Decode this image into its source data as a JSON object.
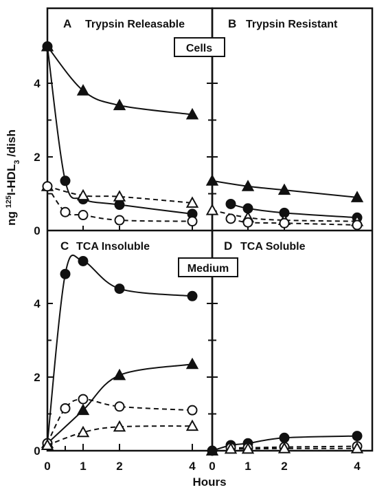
{
  "figure": {
    "ylabel": "ng 125I-HDL3 /dish",
    "xlabel": "Hours",
    "top_box_label": "Cells",
    "bottom_box_label": "Medium"
  },
  "chart_data": {
    "type": "line",
    "xlabel": "Hours",
    "ylabel": "ng 125I-HDL3 /dish",
    "ylim": [
      0,
      5.2
    ],
    "grid": false,
    "panels": [
      {
        "id": "A",
        "letter": "A",
        "title": "Trypsin Releasable",
        "series": [
          {
            "marker": "filled-triangle",
            "line": "solid",
            "x": [
              0,
              1,
              2,
              4
            ],
            "y": [
              5.0,
              3.8,
              3.4,
              3.15
            ]
          },
          {
            "marker": "filled-circle",
            "line": "solid",
            "x": [
              0,
              0.5,
              1,
              2,
              4
            ],
            "y": [
              5.0,
              1.35,
              0.85,
              0.7,
              0.45
            ]
          },
          {
            "marker": "open-triangle",
            "line": "dashed",
            "x": [
              0,
              1,
              2,
              4
            ],
            "y": [
              1.2,
              0.95,
              0.92,
              0.75
            ]
          },
          {
            "marker": "open-circle",
            "line": "dashed",
            "x": [
              0,
              0.5,
              1,
              2,
              4
            ],
            "y": [
              1.2,
              0.5,
              0.42,
              0.28,
              0.25
            ]
          }
        ]
      },
      {
        "id": "B",
        "letter": "B",
        "title": "Trypsin Resistant",
        "series": [
          {
            "marker": "filled-triangle",
            "line": "solid",
            "x": [
              0,
              1,
              2,
              4
            ],
            "y": [
              1.35,
              1.2,
              1.1,
              0.9
            ]
          },
          {
            "marker": "filled-circle",
            "line": "solid",
            "x": [
              0.5,
              1,
              2,
              4
            ],
            "y": [
              0.72,
              0.6,
              0.48,
              0.35
            ]
          },
          {
            "marker": "open-triangle",
            "line": "dashed",
            "x": [
              0,
              1,
              2,
              4
            ],
            "y": [
              0.55,
              0.35,
              0.28,
              0.25
            ]
          },
          {
            "marker": "open-circle",
            "line": "dashed",
            "x": [
              0.5,
              1,
              2,
              4
            ],
            "y": [
              0.32,
              0.22,
              0.2,
              0.15
            ]
          }
        ]
      },
      {
        "id": "C",
        "letter": "C",
        "title": "TCA Insoluble",
        "series": [
          {
            "marker": "filled-circle",
            "line": "solid",
            "x": [
              0,
              0.5,
              1,
              2,
              4
            ],
            "y": [
              0.2,
              4.8,
              5.15,
              4.4,
              4.2
            ]
          },
          {
            "marker": "filled-triangle",
            "line": "solid",
            "x": [
              0,
              1,
              2,
              4
            ],
            "y": [
              0.2,
              1.1,
              2.05,
              2.35
            ]
          },
          {
            "marker": "open-circle",
            "line": "dashed",
            "x": [
              0,
              0.5,
              1,
              2,
              4
            ],
            "y": [
              0.2,
              1.15,
              1.4,
              1.2,
              1.1
            ]
          },
          {
            "marker": "open-triangle",
            "line": "dashed",
            "x": [
              0,
              1,
              2,
              4
            ],
            "y": [
              0.15,
              0.5,
              0.65,
              0.67
            ]
          }
        ]
      },
      {
        "id": "D",
        "letter": "D",
        "title": "TCA Soluble",
        "series": [
          {
            "marker": "filled-circle",
            "line": "solid",
            "x": [
              0,
              0.5,
              1,
              2,
              4
            ],
            "y": [
              0.0,
              0.15,
              0.2,
              0.35,
              0.4
            ]
          },
          {
            "marker": "filled-triangle",
            "line": "solid",
            "x": [
              0
            ],
            "y": [
              0.0
            ]
          },
          {
            "marker": "open-circle",
            "line": "dashed",
            "x": [
              0.5,
              1,
              2,
              4
            ],
            "y": [
              0.08,
              0.08,
              0.1,
              0.12
            ]
          },
          {
            "marker": "open-triangle",
            "line": "dashed",
            "x": [
              0.5,
              1,
              2,
              4
            ],
            "y": [
              0.05,
              0.05,
              0.06,
              0.06
            ]
          }
        ]
      }
    ],
    "x_ticks": [
      "0",
      "1",
      "2",
      "4"
    ],
    "y_ticks": [
      "0",
      "2",
      "4"
    ]
  }
}
